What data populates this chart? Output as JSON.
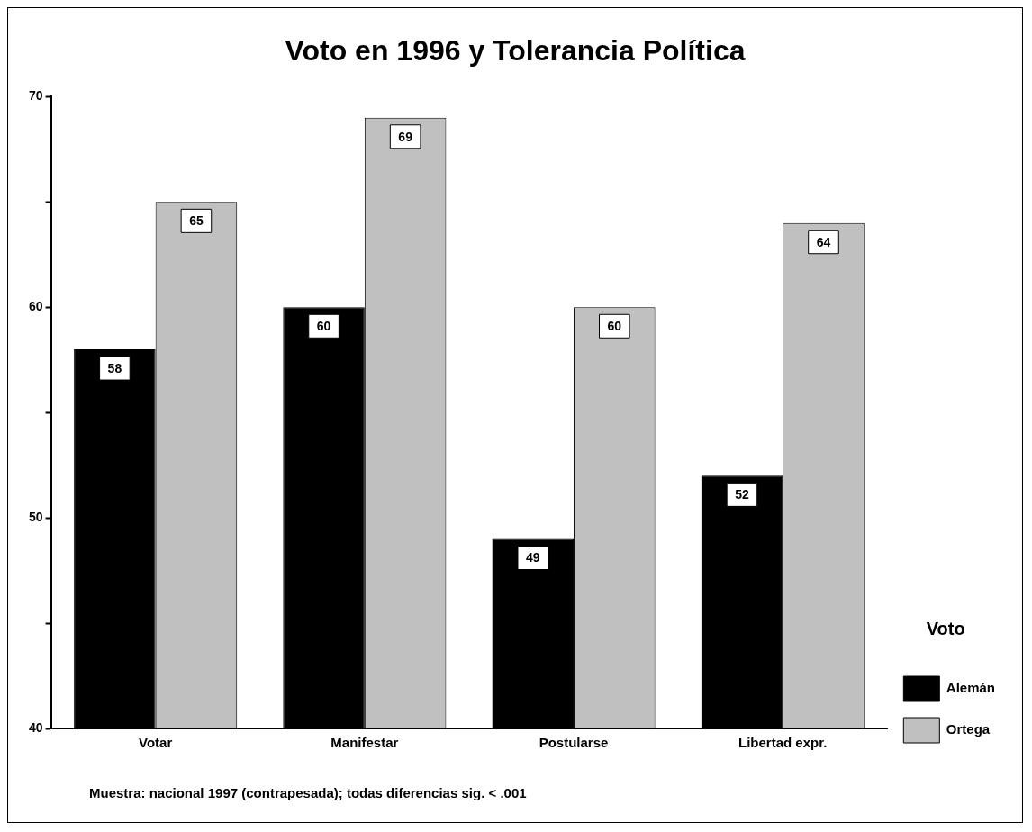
{
  "chart_data": {
    "type": "bar",
    "title": "Voto en 1996 y Tolerancia Política",
    "categories": [
      "Votar",
      "Manifestar",
      "Postularse",
      "Libertad expr."
    ],
    "series": [
      {
        "name": "Alemán",
        "color": "#000000",
        "values": [
          58,
          60,
          49,
          52
        ]
      },
      {
        "name": "Ortega",
        "color": "#c0c0c0",
        "values": [
          65,
          69,
          60,
          64
        ]
      }
    ],
    "ylim": [
      40,
      70
    ],
    "yticks": [
      40,
      {
        "value": 45,
        "label": null
      },
      50,
      {
        "value": 55,
        "label": null
      },
      60,
      {
        "value": 65,
        "label": null
      },
      70
    ],
    "grid": false,
    "legend": "right",
    "legend_title": "Voto",
    "data_labels": true,
    "annotations": [
      "Muestra: nacional 1997 (contrapesada);  todas diferencias sig. < .001"
    ]
  }
}
